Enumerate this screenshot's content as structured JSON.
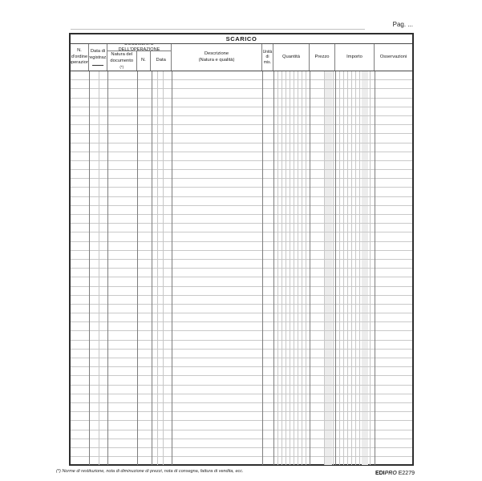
{
  "page": {
    "pag_label": "Pag. ...",
    "footnote": "(*) Norme di restituzione, nota di diminuzione di prezzi, nota di consegna, fattura di vendita, ecc.",
    "brand": {
      "part_bold": "EDI",
      "part_italic": "PRO",
      "code": "E2279"
    }
  },
  "table": {
    "title": "SCARICO",
    "row_count": 44,
    "columns": {
      "ordine": "N. d'ordine operazioni",
      "data_registraz": "Data di registraz.",
      "doc_group": "DOCUMENTO DELL'OPERAZIONE",
      "natura": "Natura del documento",
      "natura_note": "(*)",
      "numero": "N.",
      "data": "Data",
      "descrizione_1": "Descrizione",
      "descrizione_2": "(Natura e qualità)",
      "unita": "Unità di mis.",
      "quantita": "Quantità",
      "prezzo": "Prezzo",
      "importo": "Importo",
      "osservazioni": "Osservazioni"
    },
    "colors": {
      "outer_border": "#2e2e2e",
      "column_line": "#7d7d7d",
      "row_line": "#c9c9c9",
      "sub_line": "#c6c6c6",
      "shade": "#ececec"
    }
  }
}
